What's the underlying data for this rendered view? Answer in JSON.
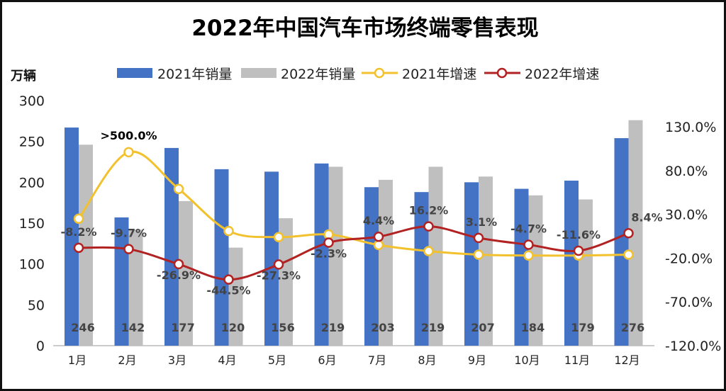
{
  "chart_data": {
    "type": "bar",
    "title": "2022年中国汽车市场终端零售表现",
    "ylabel": "万辆",
    "categories": [
      "1月",
      "2月",
      "3月",
      "4月",
      "5月",
      "6月",
      "7月",
      "8月",
      "9月",
      "10月",
      "11月",
      "12月"
    ],
    "ylim": [
      0,
      300
    ],
    "yticks": [
      "0",
      "50",
      "100",
      "150",
      "200",
      "250",
      "300"
    ],
    "y2lim": [
      -120,
      130
    ],
    "y2ticks": [
      "-120.0%",
      "-70.0%",
      "-20.0%",
      "30.0%",
      "80.0%",
      "130.0%"
    ],
    "legend_position": "top",
    "series": [
      {
        "name": "2021年销量",
        "type": "bar",
        "axis": "left",
        "color": "#4472C4",
        "values": [
          267,
          157,
          242,
          216,
          213,
          223,
          194,
          188,
          200,
          192,
          202,
          254
        ]
      },
      {
        "name": "2022年销量",
        "type": "bar",
        "axis": "left",
        "color": "#BFBFBF",
        "values": [
          246,
          142,
          177,
          120,
          156,
          219,
          203,
          219,
          207,
          184,
          179,
          276
        ],
        "labels": [
          "246",
          "142",
          "177",
          "120",
          "156",
          "219",
          "203",
          "219",
          "207",
          "184",
          "179",
          "276"
        ]
      },
      {
        "name": "2021年增速",
        "type": "line",
        "axis": "right",
        "color": "#F2C12E",
        "values": [
          25,
          101,
          59,
          11,
          4,
          7,
          -5,
          -12,
          -16,
          -17,
          -17,
          -16
        ],
        "annotation": ">500.0%"
      },
      {
        "name": "2022年增速",
        "type": "line",
        "axis": "right",
        "color": "#B22222",
        "values": [
          -8.2,
          -9.7,
          -26.9,
          -44.5,
          -27.3,
          -2.3,
          4.4,
          16.2,
          3.1,
          -4.7,
          -11.6,
          8.4
        ],
        "labels": [
          "-8.2%",
          "-9.7%",
          "-26.9%",
          "-44.5%",
          "-27.3%",
          "-2.3%",
          "4.4%",
          "16.2%",
          "3.1%",
          "-4.7%",
          "-11.6%",
          "8.4%"
        ]
      }
    ]
  }
}
